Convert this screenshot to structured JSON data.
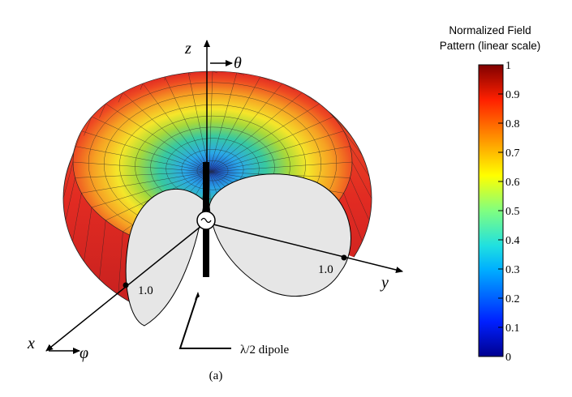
{
  "figure": {
    "axes": {
      "z": "z",
      "theta": "θ",
      "x": "x",
      "phi": "φ",
      "y": "y"
    },
    "markers": [
      "1.0",
      "1.0"
    ],
    "dipole_label": "λ/2 dipole",
    "caption": "(a)"
  },
  "colorbar": {
    "title": [
      "Normalized Field",
      "Pattern (linear scale)"
    ],
    "lim": [
      0,
      1
    ],
    "ticks": [
      0,
      0.1,
      0.2,
      0.3,
      0.4,
      0.5,
      0.6,
      0.7,
      0.8,
      0.9,
      1
    ]
  }
}
